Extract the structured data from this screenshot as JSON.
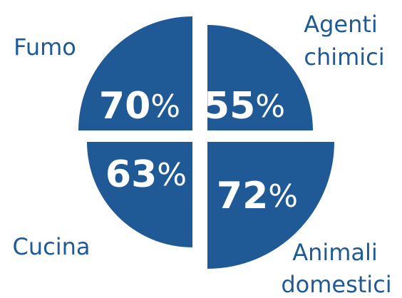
{
  "colors": {
    "segment": "#1f5a97",
    "label": "#1f5a97",
    "value_text": "#ffffff",
    "background": "#ffffff"
  },
  "chart_data": {
    "type": "pie",
    "title": "",
    "percent_sign": "%",
    "slices": [
      {
        "label": "Fumo",
        "value": 70,
        "value_label": "70",
        "position": "top-left"
      },
      {
        "label": "Agenti chimici",
        "label_lines": [
          "Agenti",
          "chimici"
        ],
        "value": 55,
        "value_label": "55",
        "position": "top-right"
      },
      {
        "label": "Cucina",
        "value": 63,
        "value_label": "63",
        "position": "bottom-left"
      },
      {
        "label": "Animali domestici",
        "label_lines": [
          "Animali",
          "domestici"
        ],
        "value": 72,
        "value_label": "72",
        "position": "bottom-right"
      }
    ]
  }
}
